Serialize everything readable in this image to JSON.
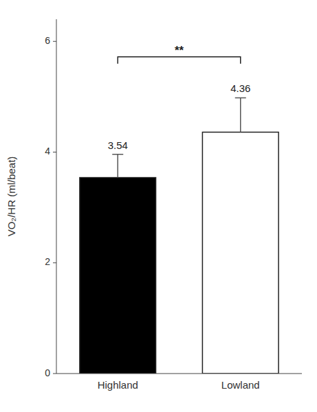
{
  "chart_data": {
    "type": "bar",
    "categories": [
      "Highland",
      "Lowland"
    ],
    "values": [
      3.54,
      4.36
    ],
    "errors": [
      0.42,
      0.62
    ],
    "colors": [
      "#000000",
      "#ffffff"
    ],
    "data_labels": true,
    "ylabel": "VO₂/HR (ml/beat)",
    "ylim": [
      0,
      6.4
    ],
    "yticks": [
      0,
      2,
      4,
      6
    ],
    "grid": false,
    "annotations": [
      {
        "text": "**",
        "y": 5.72,
        "between": [
          "Highland",
          "Lowland"
        ]
      }
    ]
  }
}
